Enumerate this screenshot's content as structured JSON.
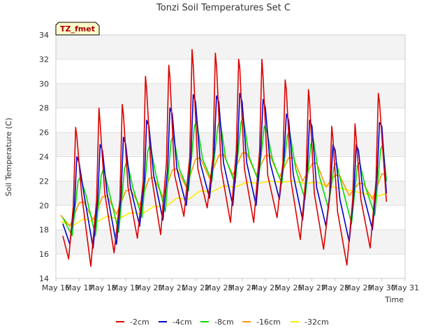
{
  "chart_data": {
    "type": "line",
    "title": "Tonzi Soil Temperatures Set C",
    "xlabel": "Time",
    "ylabel": "Soil Temperature (C)",
    "badge": "TZ_fmet",
    "ylim": [
      14,
      34
    ],
    "yticks": [
      14,
      16,
      18,
      20,
      22,
      24,
      26,
      28,
      30,
      32,
      34
    ],
    "xlim": [
      16,
      31
    ],
    "xticks": [
      16,
      17,
      18,
      19,
      20,
      21,
      22,
      23,
      24,
      25,
      26,
      27,
      28,
      29,
      30,
      31
    ],
    "xtick_labels": [
      "May 16",
      "May 17",
      "May 18",
      "May 19",
      "May 20",
      "May 21",
      "May 22",
      "May 23",
      "May 24",
      "May 25",
      "May 26",
      "May 27",
      "May 28",
      "May 29",
      "May 30",
      "May 31"
    ],
    "legend_position": "bottom",
    "grid": "horizontal bands",
    "series": [
      {
        "name": "-2cm",
        "color": "#dd0000",
        "x": [
          16.3,
          16.55,
          16.75,
          16.85,
          16.9,
          17.1,
          17.5,
          17.75,
          17.85,
          17.9,
          18.1,
          18.5,
          18.75,
          18.85,
          18.9,
          19.1,
          19.5,
          19.75,
          19.85,
          19.9,
          20.1,
          20.5,
          20.75,
          20.85,
          20.9,
          21.1,
          21.5,
          21.75,
          21.85,
          21.9,
          22.1,
          22.5,
          22.75,
          22.85,
          22.9,
          23.1,
          23.5,
          23.75,
          23.85,
          23.9,
          24.1,
          24.5,
          24.75,
          24.85,
          24.9,
          25.1,
          25.5,
          25.75,
          25.85,
          25.9,
          26.1,
          26.5,
          26.75,
          26.85,
          26.9,
          27.1,
          27.5,
          27.75,
          27.85,
          27.9,
          28.1,
          28.5,
          28.75,
          28.85,
          28.9,
          29.1,
          29.5,
          29.75,
          29.85,
          29.9,
          30.2
        ],
        "y": [
          17.5,
          15.6,
          20,
          26.4,
          25.7,
          21,
          15,
          20.5,
          28,
          26.8,
          21,
          16.1,
          20.5,
          28.3,
          27.5,
          21.5,
          17.3,
          22,
          30.6,
          29.5,
          22.5,
          17.6,
          23.5,
          31.5,
          30.5,
          22.5,
          19.1,
          24,
          32.8,
          31.5,
          23,
          19.8,
          24,
          32.5,
          31.5,
          23,
          18.6,
          24.5,
          32,
          31.3,
          23,
          18.6,
          24.5,
          32,
          30.5,
          22.5,
          19,
          23.5,
          30.3,
          29.5,
          22,
          17.2,
          22.5,
          29.5,
          28.5,
          21,
          16.4,
          20.5,
          26.5,
          25.5,
          19.5,
          15.1,
          20.5,
          26.7,
          25.5,
          20.5,
          16.5,
          22,
          29.2,
          28.5,
          20.3
        ]
      },
      {
        "name": "-4cm",
        "color": "#0000cc",
        "x": [
          16.3,
          16.6,
          16.8,
          16.9,
          17.0,
          17.2,
          17.6,
          17.8,
          17.9,
          18.0,
          18.2,
          18.6,
          18.8,
          18.9,
          19.0,
          19.2,
          19.6,
          19.8,
          19.9,
          20.0,
          20.2,
          20.6,
          20.8,
          20.9,
          21.0,
          21.2,
          21.6,
          21.8,
          21.9,
          22.0,
          22.2,
          22.6,
          22.8,
          22.9,
          23.0,
          23.2,
          23.6,
          23.8,
          23.9,
          24.0,
          24.2,
          24.6,
          24.8,
          24.9,
          25.0,
          25.2,
          25.6,
          25.8,
          25.9,
          26.0,
          26.2,
          26.6,
          26.8,
          26.9,
          27.0,
          27.2,
          27.6,
          27.8,
          27.9,
          28.0,
          28.2,
          28.6,
          28.8,
          28.9,
          29.0,
          29.2,
          29.6,
          29.8,
          29.9,
          30.0,
          30.2
        ],
        "y": [
          18.5,
          16.8,
          20,
          24,
          23.5,
          21,
          16.5,
          20.5,
          25,
          24.5,
          21,
          16.8,
          20.8,
          25.6,
          25,
          21.5,
          18.3,
          22,
          27,
          26.5,
          22.5,
          18.8,
          23,
          28,
          27.5,
          23,
          20,
          24,
          29.1,
          28.5,
          23.5,
          20.6,
          24.5,
          29,
          28.5,
          23.5,
          20,
          24.5,
          29.2,
          28.5,
          23.5,
          20,
          24.5,
          28.7,
          28,
          23.5,
          20.5,
          24,
          27.5,
          27,
          22.5,
          18.8,
          23,
          27,
          26.5,
          21.5,
          18.3,
          21.5,
          25,
          24.5,
          20.5,
          17,
          21,
          25,
          24.5,
          21,
          18,
          22.5,
          26.8,
          26.5,
          21
        ]
      },
      {
        "name": "-8cm",
        "color": "#00dd00",
        "x": [
          16.3,
          16.7,
          16.95,
          17.05,
          17.3,
          17.7,
          17.95,
          18.05,
          18.3,
          18.7,
          18.95,
          19.05,
          19.3,
          19.7,
          19.95,
          20.05,
          20.3,
          20.7,
          20.95,
          21.05,
          21.3,
          21.7,
          21.95,
          22.05,
          22.3,
          22.7,
          22.95,
          23.05,
          23.3,
          23.7,
          23.95,
          24.05,
          24.3,
          24.7,
          24.95,
          25.05,
          25.3,
          25.7,
          25.95,
          26.05,
          26.3,
          26.7,
          26.95,
          27.05,
          27.3,
          27.7,
          27.95,
          28.05,
          28.3,
          28.7,
          28.95,
          29.05,
          29.3,
          29.7,
          29.95,
          30.05,
          30.2
        ],
        "y": [
          19,
          17.5,
          22,
          22.3,
          20.8,
          17.5,
          22.5,
          23,
          21,
          17.8,
          23,
          23.7,
          21.5,
          19,
          24.5,
          25,
          22.5,
          19.5,
          25.3,
          25.7,
          23,
          21.2,
          26.5,
          26.9,
          23.8,
          22,
          26.5,
          27,
          23.8,
          21.8,
          26.8,
          27.2,
          24,
          22,
          26.5,
          26.2,
          23.8,
          21.8,
          25.8,
          26,
          23,
          20.5,
          25,
          25.5,
          22.5,
          19.8,
          23.2,
          23.5,
          21.5,
          18.5,
          23.3,
          23.5,
          21.5,
          19.2,
          24.6,
          25,
          22
        ]
      },
      {
        "name": "-16cm",
        "color": "#ff9900",
        "x": [
          16.2,
          16.6,
          17.0,
          17.2,
          17.6,
          18.0,
          18.2,
          18.6,
          19.0,
          19.2,
          19.6,
          20.0,
          20.2,
          20.6,
          21.0,
          21.2,
          21.6,
          22.0,
          22.2,
          22.6,
          23.0,
          23.2,
          23.6,
          24.0,
          24.2,
          24.6,
          25.0,
          25.2,
          25.6,
          26.0,
          26.2,
          26.6,
          27.0,
          27.2,
          27.6,
          28.0,
          28.2,
          28.6,
          29.0,
          29.2,
          29.6,
          30.0,
          30.2
        ],
        "y": [
          19.2,
          18.3,
          20.2,
          20.3,
          18.8,
          20.7,
          20.8,
          19.3,
          21.2,
          21.3,
          20,
          22.2,
          22.3,
          20.7,
          22.9,
          23,
          21.5,
          23.8,
          23.9,
          22.2,
          24.1,
          24.2,
          22.5,
          24.3,
          24.3,
          22.5,
          24.1,
          24.1,
          22.3,
          23.9,
          23.9,
          22,
          23.4,
          23.5,
          21.5,
          22.5,
          22.4,
          20.8,
          21.8,
          21.8,
          20.5,
          22.6,
          22.5
        ]
      },
      {
        "name": "-32cm",
        "color": "#ffee00",
        "x": [
          16.2,
          16.7,
          17.2,
          17.7,
          18.2,
          18.7,
          19.2,
          19.7,
          20.2,
          20.7,
          21.2,
          21.7,
          22.2,
          22.7,
          23.2,
          23.7,
          24.2,
          24.7,
          25.2,
          25.7,
          26.2,
          26.7,
          27.2,
          27.7,
          28.2,
          28.7,
          29.2,
          29.7,
          30.2
        ],
        "y": [
          18.7,
          18.3,
          18.9,
          18.6,
          19.1,
          18.9,
          19.4,
          19.3,
          19.9,
          19.9,
          20.6,
          20.5,
          21.2,
          21.1,
          21.6,
          21.5,
          21.9,
          21.8,
          22.0,
          21.9,
          22.0,
          21.8,
          21.9,
          21.6,
          21.4,
          21.2,
          21.0,
          20.7,
          21.0
        ]
      }
    ]
  }
}
